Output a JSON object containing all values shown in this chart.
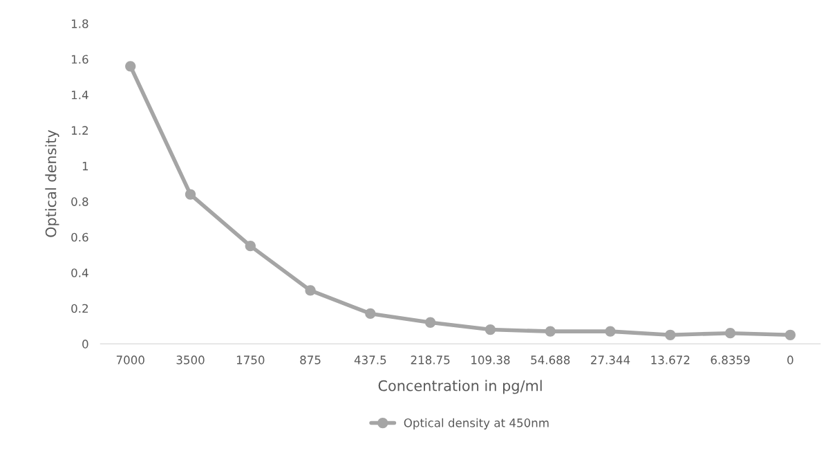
{
  "chart_data": {
    "type": "line",
    "xlabel": "Concentration in pg/ml",
    "ylabel": "Optical density",
    "categories": [
      "7000",
      "3500",
      "1750",
      "875",
      "437.5",
      "218.75",
      "109.38",
      "54.688",
      "27.344",
      "13.672",
      "6.8359",
      "0"
    ],
    "series": [
      {
        "name": "Optical density at 450nm",
        "color": "#a5a5a5",
        "values": [
          1.56,
          0.84,
          0.55,
          0.3,
          0.17,
          0.12,
          0.08,
          0.07,
          0.07,
          0.05,
          0.06,
          0.05
        ]
      }
    ],
    "ylim": [
      0,
      1.8
    ],
    "yticks": [
      0,
      {
        "value": 0.2,
        "label": "0.2"
      },
      {
        "value": 0.4,
        "label": "0.4"
      },
      {
        "value": 0.6,
        "label": "0.6"
      },
      {
        "value": 0.8,
        "label": "0.8"
      },
      1,
      {
        "value": 1.2,
        "label": "1.2"
      },
      {
        "value": 1.4,
        "label": "1.4"
      },
      {
        "value": 1.6,
        "label": "1.6"
      },
      {
        "value": 1.8,
        "label": "1.8"
      }
    ],
    "grid": false,
    "legend": "bottom",
    "marker": "circle",
    "line_style": "solid"
  }
}
